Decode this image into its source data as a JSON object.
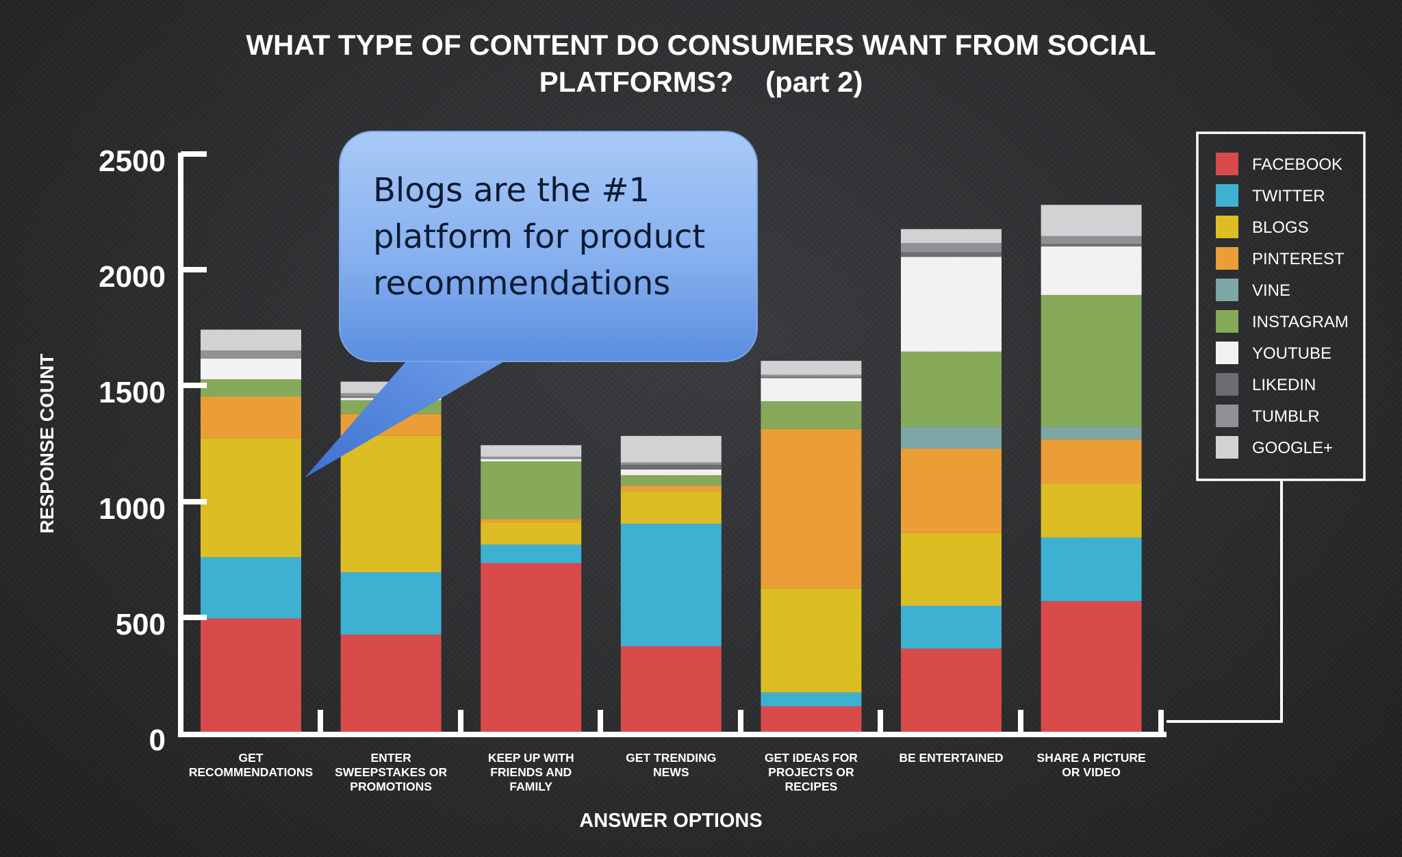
{
  "chart_data": {
    "type": "bar",
    "stacked": true,
    "title": "WHAT TYPE OF CONTENT DO CONSUMERS WANT FROM SOCIAL PLATFORMS?    (part 2)",
    "title_lines": [
      "WHAT TYPE OF CONTENT DO CONSUMERS WANT FROM SOCIAL",
      "PLATFORMS?    (part 2)"
    ],
    "xlabel": "ANSWER OPTIONS",
    "ylabel": "RESPONSE COUNT",
    "ylim": [
      0,
      2500
    ],
    "yticks": [
      "0",
      "500",
      "1000",
      "1500",
      "2000",
      "2500"
    ],
    "grid": false,
    "legend_position": "top-right",
    "categories": [
      "GET RECOMMENDATIONS",
      "ENTER SWEEPSTAKES OR PROMOTIONS",
      "KEEP UP WITH FRIENDS AND FAMILY",
      "GET TRENDING NEWS",
      "GET IDEAS FOR PROJECTS OR RECIPES",
      "BE ENTERTAINED",
      "SHARE A PICTURE OR VIDEO"
    ],
    "category_label_lines": [
      [
        "GET",
        "RECOMMENDATIONS"
      ],
      [
        "ENTER",
        "SWEEPSTAKES OR",
        "PROMOTIONS"
      ],
      [
        "KEEP UP WITH",
        "FRIENDS AND",
        "FAMILY"
      ],
      [
        "GET TRENDING",
        "NEWS"
      ],
      [
        "GET IDEAS FOR",
        "PROJECTS OR",
        "RECIPES"
      ],
      [
        "BE ENTERTAINED"
      ],
      [
        "SHARE A PICTURE",
        "OR VIDEO"
      ]
    ],
    "series": [
      {
        "name": "FACEBOOK",
        "color": "#d94a4a",
        "values": [
          490,
          420,
          730,
          370,
          110,
          360,
          565
        ]
      },
      {
        "name": "TWITTER",
        "color": "#3eb1d3",
        "values": [
          265,
          270,
          80,
          530,
          60,
          185,
          275
        ]
      },
      {
        "name": "BLOGS",
        "color": "#dcbd24",
        "values": [
          515,
          590,
          95,
          140,
          450,
          315,
          235
        ]
      },
      {
        "name": "PINTEREST",
        "color": "#eb9e36",
        "values": [
          180,
          95,
          15,
          25,
          690,
          365,
          190
        ]
      },
      {
        "name": "VINE",
        "color": "#7fa6a6",
        "values": [
          0,
          0,
          0,
          0,
          0,
          95,
          55
        ]
      },
      {
        "name": "INSTAGRAM",
        "color": "#86a95a",
        "values": [
          75,
          60,
          250,
          45,
          120,
          325,
          570
        ]
      },
      {
        "name": "YOUTUBE",
        "color": "#f2f2f2",
        "values": [
          90,
          10,
          10,
          25,
          100,
          410,
          210
        ]
      },
      {
        "name": "LIKEDIN",
        "color": "#6c6d70",
        "values": [
          0,
          5,
          0,
          20,
          5,
          20,
          10
        ]
      },
      {
        "name": "TUMBLR",
        "color": "#909194",
        "values": [
          35,
          15,
          10,
          10,
          10,
          40,
          35
        ]
      },
      {
        "name": "GOOGLE+",
        "color": "#d1d2d4",
        "values": [
          90,
          50,
          50,
          115,
          60,
          60,
          135
        ]
      }
    ]
  },
  "callout": {
    "lines": [
      "Blogs are the #1",
      "platform for product",
      "recommendations"
    ]
  }
}
